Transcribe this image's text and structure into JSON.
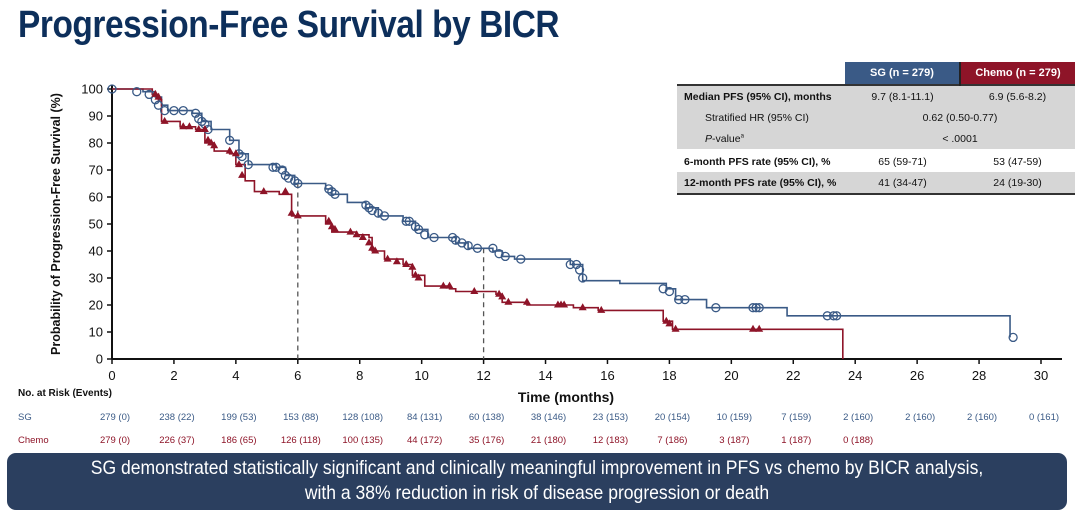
{
  "title": "Progression-Free Survival by BICR",
  "colors": {
    "sg": "#3a5a86",
    "chemo": "#8e1428",
    "title": "#0d2f5b",
    "banner": "#2b3f5f"
  },
  "chart_data": {
    "type": "line",
    "title": "Progression-Free Survival by BICR",
    "xlabel": "Time (months)",
    "ylabel": "Probability of Progression-Free Survival (%)",
    "xlim": [
      0,
      30
    ],
    "ylim": [
      0,
      100
    ],
    "x_ticks": [
      "0",
      "2",
      "4",
      "6",
      "8",
      "10",
      "12",
      "14",
      "16",
      "18",
      "20",
      "22",
      "24",
      "26",
      "28",
      "30"
    ],
    "y_ticks": [
      "0",
      "10",
      "20",
      "30",
      "40",
      "50",
      "60",
      "70",
      "80",
      "90",
      "100"
    ],
    "reference_lines_x": [
      6,
      12
    ],
    "series": [
      {
        "name": "SG",
        "marker": "open-circle (censored)",
        "steps": [
          [
            0,
            100
          ],
          [
            1.0,
            99
          ],
          [
            1.4,
            97
          ],
          [
            1.6,
            94
          ],
          [
            1.8,
            92
          ],
          [
            2.6,
            91
          ],
          [
            2.9,
            88
          ],
          [
            3.2,
            85
          ],
          [
            3.8,
            81
          ],
          [
            4.1,
            76
          ],
          [
            4.4,
            72
          ],
          [
            5.3,
            71
          ],
          [
            5.6,
            68
          ],
          [
            5.9,
            65
          ],
          [
            6.9,
            63
          ],
          [
            7.1,
            61
          ],
          [
            7.6,
            58
          ],
          [
            8.2,
            56
          ],
          [
            8.6,
            53
          ],
          [
            9.4,
            51
          ],
          [
            9.8,
            48
          ],
          [
            10.2,
            45
          ],
          [
            11.1,
            43
          ],
          [
            11.5,
            41
          ],
          [
            12.3,
            40
          ],
          [
            12.6,
            38
          ],
          [
            13.0,
            37
          ],
          [
            14.8,
            35
          ],
          [
            15.2,
            29
          ],
          [
            16.4,
            28
          ],
          [
            17.9,
            26
          ],
          [
            18.2,
            22
          ],
          [
            19.2,
            19
          ],
          [
            21.8,
            16
          ],
          [
            29.0,
            8
          ]
        ],
        "censored": [
          [
            0,
            100
          ],
          [
            0.8,
            99
          ],
          [
            1.2,
            98
          ],
          [
            1.4,
            96
          ],
          [
            1.5,
            94
          ],
          [
            1.7,
            92
          ],
          [
            2.0,
            92
          ],
          [
            2.3,
            92
          ],
          [
            2.7,
            91
          ],
          [
            2.8,
            89
          ],
          [
            2.9,
            88
          ],
          [
            3.0,
            87
          ],
          [
            3.1,
            85
          ],
          [
            3.8,
            81
          ],
          [
            4.1,
            76
          ],
          [
            4.2,
            75
          ],
          [
            4.4,
            72
          ],
          [
            5.2,
            71
          ],
          [
            5.3,
            71
          ],
          [
            5.5,
            70
          ],
          [
            5.6,
            68
          ],
          [
            5.7,
            67
          ],
          [
            5.9,
            66
          ],
          [
            6.0,
            65
          ],
          [
            7.0,
            63
          ],
          [
            7.1,
            62
          ],
          [
            7.2,
            61
          ],
          [
            8.2,
            57
          ],
          [
            8.3,
            56
          ],
          [
            8.4,
            55
          ],
          [
            8.6,
            54
          ],
          [
            8.8,
            53
          ],
          [
            9.5,
            51
          ],
          [
            9.6,
            51
          ],
          [
            9.8,
            49
          ],
          [
            9.9,
            48
          ],
          [
            10.1,
            46
          ],
          [
            10.4,
            45
          ],
          [
            11.0,
            45
          ],
          [
            11.1,
            44
          ],
          [
            11.3,
            43
          ],
          [
            11.5,
            42
          ],
          [
            11.8,
            41
          ],
          [
            12.3,
            41
          ],
          [
            12.5,
            39
          ],
          [
            12.7,
            38
          ],
          [
            13.2,
            37
          ],
          [
            14.8,
            35
          ],
          [
            15.0,
            35
          ],
          [
            15.1,
            33
          ],
          [
            15.2,
            30
          ],
          [
            17.8,
            26
          ],
          [
            18.0,
            25
          ],
          [
            18.3,
            22
          ],
          [
            18.5,
            22
          ],
          [
            19.5,
            19
          ],
          [
            20.7,
            19
          ],
          [
            20.8,
            19
          ],
          [
            20.9,
            19
          ],
          [
            23.1,
            16
          ],
          [
            23.3,
            16
          ],
          [
            23.4,
            16
          ],
          [
            29.1,
            8
          ]
        ]
      },
      {
        "name": "Chemo",
        "marker": "filled-triangle (censored)",
        "steps": [
          [
            0,
            100
          ],
          [
            1.3,
            98
          ],
          [
            1.5,
            96
          ],
          [
            1.6,
            88
          ],
          [
            2.2,
            86
          ],
          [
            2.7,
            85
          ],
          [
            3.0,
            80
          ],
          [
            3.3,
            77
          ],
          [
            3.8,
            76
          ],
          [
            4.0,
            72
          ],
          [
            4.3,
            66
          ],
          [
            4.6,
            62
          ],
          [
            5.4,
            61
          ],
          [
            5.8,
            53
          ],
          [
            6.9,
            50
          ],
          [
            7.1,
            47
          ],
          [
            7.9,
            46
          ],
          [
            8.3,
            45
          ],
          [
            8.4,
            40
          ],
          [
            8.8,
            37
          ],
          [
            9.4,
            35
          ],
          [
            9.7,
            31
          ],
          [
            10.1,
            27
          ],
          [
            10.9,
            26
          ],
          [
            11.1,
            25
          ],
          [
            12.4,
            24
          ],
          [
            12.6,
            21
          ],
          [
            13.4,
            20
          ],
          [
            14.9,
            19
          ],
          [
            15.7,
            18
          ],
          [
            17.8,
            14
          ],
          [
            18.1,
            11
          ],
          [
            23.6,
            0
          ]
        ],
        "censored": [
          [
            1.4,
            98
          ],
          [
            1.5,
            97
          ],
          [
            1.7,
            88
          ],
          [
            2.3,
            86
          ],
          [
            2.5,
            86
          ],
          [
            2.8,
            85
          ],
          [
            3.0,
            85
          ],
          [
            3.1,
            81
          ],
          [
            3.2,
            80
          ],
          [
            3.3,
            79
          ],
          [
            3.8,
            77
          ],
          [
            4.0,
            76
          ],
          [
            4.1,
            72
          ],
          [
            4.2,
            68
          ],
          [
            4.9,
            62
          ],
          [
            5.6,
            62
          ],
          [
            5.8,
            54
          ],
          [
            6.0,
            53
          ],
          [
            7.0,
            51
          ],
          [
            7.1,
            49
          ],
          [
            7.2,
            48
          ],
          [
            7.7,
            47
          ],
          [
            7.9,
            46
          ],
          [
            8.1,
            45
          ],
          [
            8.3,
            43
          ],
          [
            8.4,
            41
          ],
          [
            8.5,
            40
          ],
          [
            8.9,
            37
          ],
          [
            9.2,
            36
          ],
          [
            9.5,
            35
          ],
          [
            9.7,
            34
          ],
          [
            9.8,
            31
          ],
          [
            9.9,
            30
          ],
          [
            10.7,
            27
          ],
          [
            10.9,
            27
          ],
          [
            11.7,
            25
          ],
          [
            12.5,
            24
          ],
          [
            12.6,
            23
          ],
          [
            12.8,
            21
          ],
          [
            13.4,
            21
          ],
          [
            14.4,
            20
          ],
          [
            14.5,
            20
          ],
          [
            14.6,
            20
          ],
          [
            15.2,
            19
          ],
          [
            15.8,
            18
          ],
          [
            17.9,
            14
          ],
          [
            18.0,
            13
          ],
          [
            18.2,
            11
          ],
          [
            20.7,
            11
          ],
          [
            20.9,
            11
          ]
        ]
      }
    ]
  },
  "stats_table": {
    "headers": [
      "",
      "SG (n = 279)",
      "Chemo (n = 279)"
    ],
    "rows": [
      {
        "label": "Median PFS (95% CI), months",
        "sg": "9.7 (8.1-11.1)",
        "chemo": "6.9 (5.6-8.2)"
      },
      {
        "label": "Stratified HR (95% CI)",
        "value": "0.62 (0.50-0.77)"
      },
      {
        "label_italic": "P",
        "label_rest": "-value",
        "label_sup": "a",
        "value": "< .0001"
      },
      {
        "label": "6-month PFS rate (95% CI), %",
        "sg": "65 (59-71)",
        "chemo": "53 (47-59)"
      },
      {
        "label": "12-month PFS rate (95% CI), %",
        "sg": "41 (34-47)",
        "chemo": "24 (19-30)"
      }
    ]
  },
  "risk_table": {
    "title": "No. at Risk (Events)",
    "times": [
      0,
      2,
      4,
      6,
      8,
      10,
      12,
      14,
      16,
      18,
      20,
      22,
      24,
      26,
      28,
      30
    ],
    "sg_label": "SG",
    "chemo_label": "Chemo",
    "sg": [
      "279 (0)",
      "238 (22)",
      "199 (53)",
      "153 (88)",
      "128 (108)",
      "84 (131)",
      "60 (138)",
      "38 (146)",
      "23 (153)",
      "20 (154)",
      "10 (159)",
      "7 (159)",
      "2 (160)",
      "2 (160)",
      "2 (160)",
      "0 (161)"
    ],
    "chemo": [
      "279 (0)",
      "226 (37)",
      "186 (65)",
      "126 (118)",
      "100 (135)",
      "44 (172)",
      "35 (176)",
      "21 (180)",
      "12 (183)",
      "7 (186)",
      "3 (187)",
      "1 (187)",
      "0 (188)"
    ]
  },
  "banner": {
    "line1": "SG demonstrated statistically significant and clinically meaningful improvement in PFS vs chemo by BICR analysis,",
    "line2": "with a 38% reduction in risk of disease progression or death"
  }
}
